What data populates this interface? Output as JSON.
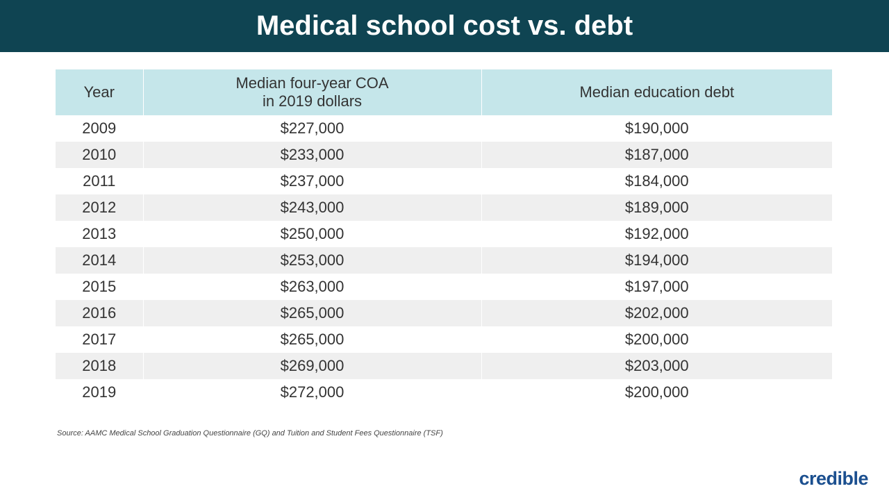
{
  "title": "Medical school cost vs. debt",
  "chart_data": {
    "type": "table",
    "title": "Medical school cost vs. debt",
    "columns": [
      "Year",
      "Median four-year COA\nin 2019 dollars",
      "Median education debt"
    ],
    "rows": [
      [
        "2009",
        "$227,000",
        "$190,000"
      ],
      [
        "2010",
        "$233,000",
        "$187,000"
      ],
      [
        "2011",
        "$237,000",
        "$184,000"
      ],
      [
        "2012",
        "$243,000",
        "$189,000"
      ],
      [
        "2013",
        "$250,000",
        "$192,000"
      ],
      [
        "2014",
        "$253,000",
        "$194,000"
      ],
      [
        "2015",
        "$263,000",
        "$197,000"
      ],
      [
        "2016",
        "$265,000",
        "$202,000"
      ],
      [
        "2017",
        "$265,000",
        "$200,000"
      ],
      [
        "2018",
        "$269,000",
        "$203,000"
      ],
      [
        "2019",
        "$272,000",
        "$200,000"
      ]
    ]
  },
  "header": {
    "col1": "Year",
    "col2_line1": "Median four-year COA",
    "col2_line2": "in 2019 dollars",
    "col3": "Median education debt"
  },
  "source": "Source: AAMC Medical School Graduation Questionnaire (GQ) and Tuition and Student Fees Questionnaire (TSF)",
  "logo": "credible",
  "colors": {
    "title_bg": "#0f4452",
    "header_bg": "#c5e6ea",
    "alt_row": "#efefef",
    "logo": "#1b4f8f"
  }
}
